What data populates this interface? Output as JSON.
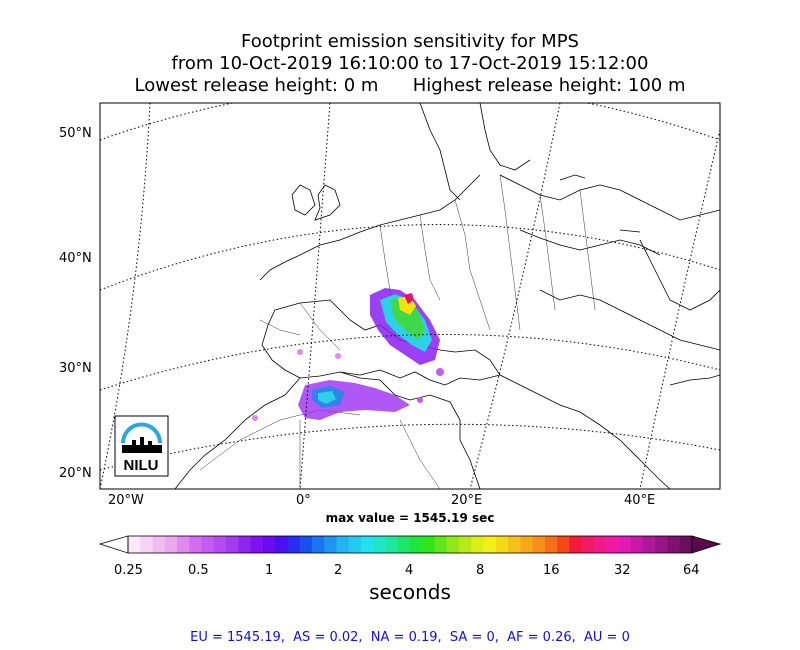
{
  "title": {
    "line1": "Footprint emission sensitivity for MPS",
    "line2": "from 10-Oct-2019 16:10:00 to 17-Oct-2019 15:12:00",
    "line3": "Lowest release height: 0 m      Highest release height: 100 m"
  },
  "map": {
    "lat_labels": [
      "50°N",
      "40°N",
      "30°N",
      "20°N"
    ],
    "lon_labels": [
      "20°W",
      "0°",
      "20°E",
      "40°E"
    ],
    "logo_text": "NILU"
  },
  "max_value_text": "max value = 1545.19 sec",
  "colorbar": {
    "ticks": [
      "0.25",
      "0.5",
      "1",
      "2",
      "4",
      "8",
      "16",
      "32",
      "64"
    ],
    "label": "seconds"
  },
  "regions_text": "EU = 1545.19,  AS = 0.02,  NA = 0.19,  SA = 0,  AF = 0.26,  AU = 0"
}
